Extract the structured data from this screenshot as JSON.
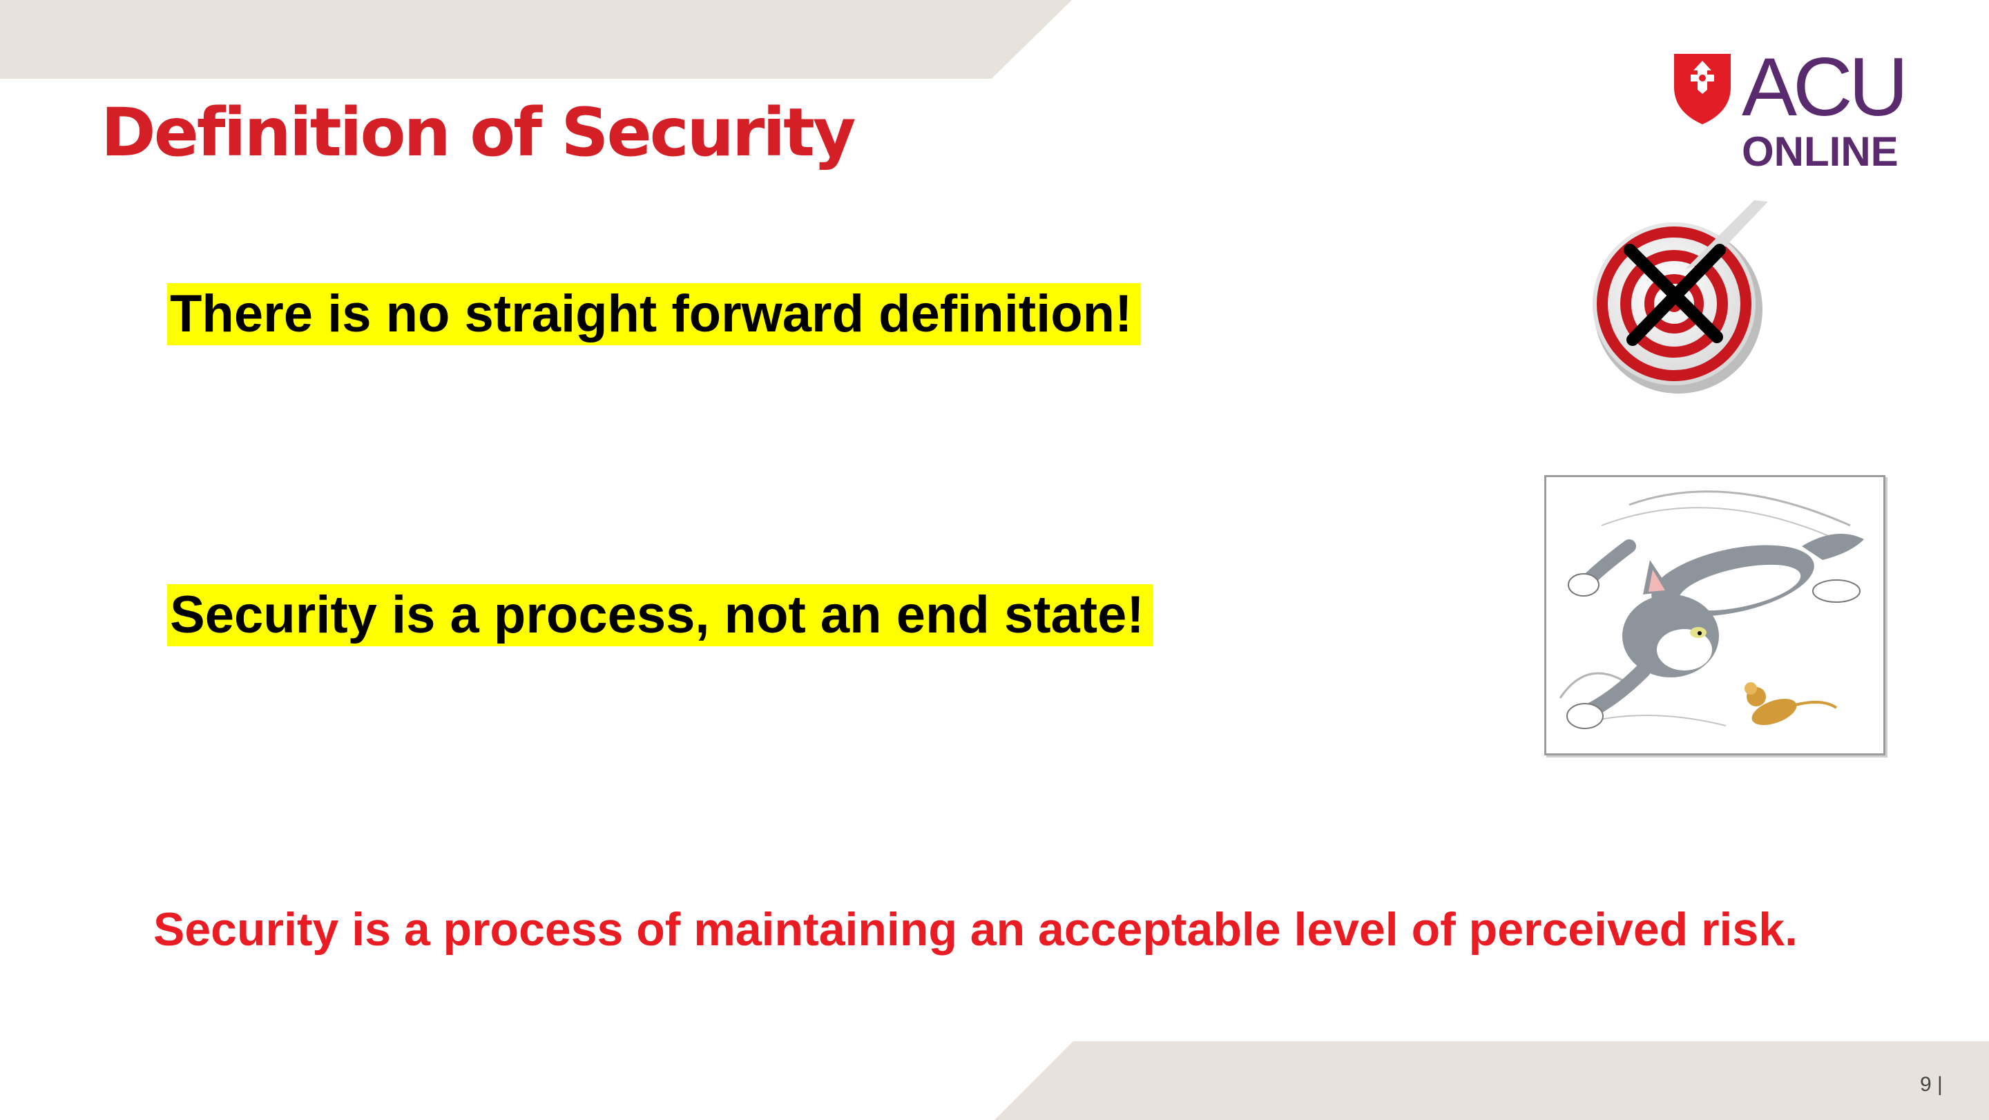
{
  "slide": {
    "title": "Definition of Security",
    "statement_1": "There is no straight forward definition!",
    "statement_2": "Security is a process, not an end state!",
    "conclusion": "Security is a process of maintaining an acceptable level of perceived risk.",
    "page_number": "9  |"
  },
  "logo": {
    "line_1": "ACU",
    "line_2": "ONLINE",
    "icon": "shield-cross-icon"
  },
  "images": {
    "target": "crossed-out-target-icon",
    "cartoon": "cat-chasing-mouse-cartoon"
  },
  "colors": {
    "title": "#d41f26",
    "highlight": "#ffff00",
    "conclusion": "#e81c22",
    "logo_purple": "#5a2a6e",
    "band": "#e8e2dd"
  }
}
